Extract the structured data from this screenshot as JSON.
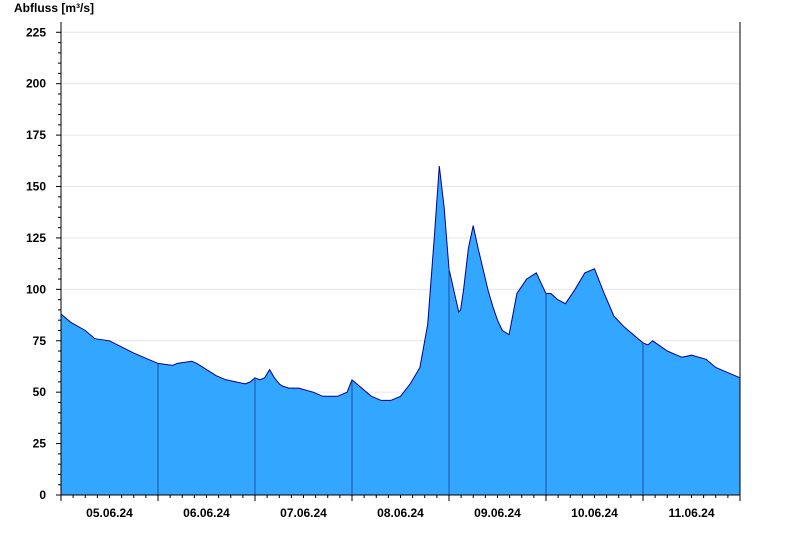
{
  "chart_data": {
    "type": "area",
    "title": "",
    "ylabel": "Abfluss [m³/s]",
    "xlabel": "",
    "ylim": [
      0,
      230
    ],
    "yticks": [
      0,
      25,
      50,
      75,
      100,
      125,
      150,
      175,
      200,
      225
    ],
    "xrange": [
      4.5,
      11.5
    ],
    "xticks": [
      {
        "label": "05.06.24",
        "x": 5.0
      },
      {
        "label": "06.06.24",
        "x": 6.0
      },
      {
        "label": "07.06.24",
        "x": 7.0
      },
      {
        "label": "08.06.24",
        "x": 8.0
      },
      {
        "label": "09.06.24",
        "x": 9.0
      },
      {
        "label": "10.06.24",
        "x": 10.0
      },
      {
        "label": "11.06.24",
        "x": 11.0
      }
    ],
    "day_boundaries": [
      5.5,
      6.5,
      7.5,
      8.5,
      9.5,
      10.5
    ],
    "grid": true,
    "colors": {
      "fill": "#33a6ff",
      "line": "#00008b",
      "grid": "#e6e6e6",
      "axis": "#000000"
    },
    "series": [
      {
        "x": [
          4.5,
          4.6,
          4.75,
          4.85,
          5.0,
          5.25,
          5.4,
          5.5,
          5.65,
          5.7,
          5.85,
          5.9,
          6.0,
          6.1,
          6.2,
          6.4,
          6.45,
          6.5,
          6.55,
          6.6,
          6.65,
          6.7,
          6.75,
          6.78,
          6.85,
          6.95,
          7.1,
          7.2,
          7.35,
          7.45,
          7.5,
          7.7,
          7.75,
          7.8,
          7.9,
          8.0,
          8.1,
          8.2,
          8.28,
          8.35,
          8.4,
          8.45,
          8.5,
          8.6,
          8.62,
          8.65,
          8.7,
          8.75,
          8.8,
          8.9,
          8.95,
          9.0,
          9.05,
          9.12,
          9.2,
          9.3,
          9.4,
          9.45,
          9.5,
          9.55,
          9.62,
          9.7,
          9.8,
          9.9,
          10.0,
          10.1,
          10.2,
          10.3,
          10.35,
          10.45,
          10.5,
          10.55,
          10.6,
          10.75,
          10.85,
          10.9,
          11.0,
          11.15,
          11.25,
          11.35,
          11.45,
          11.5
        ],
        "y": [
          88,
          84,
          80,
          76,
          75,
          69,
          66,
          64,
          63,
          64,
          65,
          64,
          61,
          58,
          56,
          54,
          55,
          57,
          56,
          57,
          61,
          57,
          54,
          53,
          52,
          52,
          50,
          48,
          48,
          50,
          56,
          48,
          47,
          46,
          46,
          48,
          54,
          62,
          83,
          126,
          160,
          140,
          110,
          89,
          90,
          100,
          120,
          131,
          120,
          100,
          92,
          85,
          80,
          78,
          98,
          105,
          108,
          103,
          98,
          98,
          95,
          93,
          100,
          108,
          110,
          98,
          87,
          82,
          80,
          76,
          74,
          73,
          75,
          70,
          68,
          67,
          68,
          66,
          62,
          60,
          58,
          57
        ]
      }
    ]
  }
}
